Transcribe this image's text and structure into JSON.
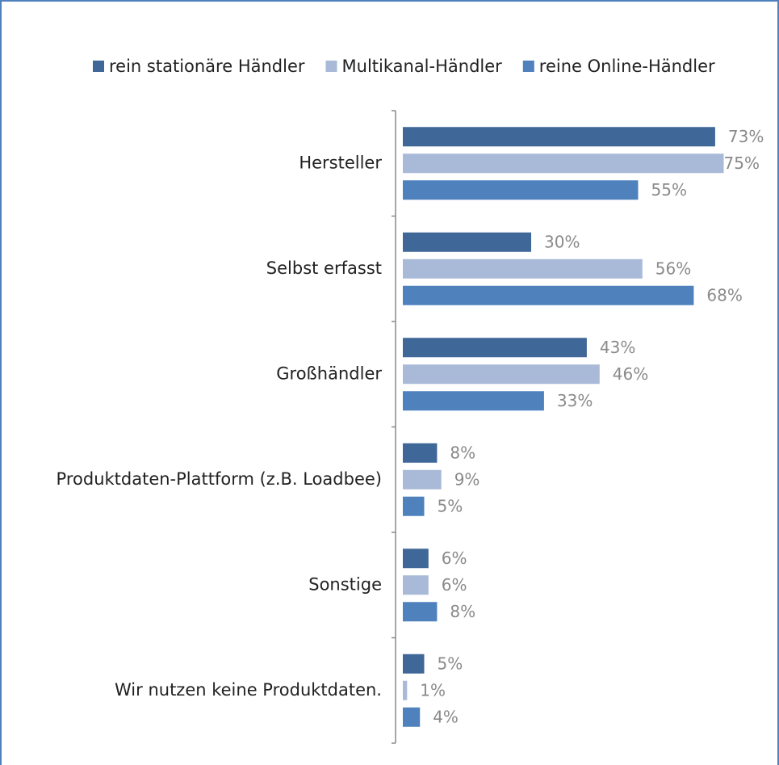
{
  "chart_data": {
    "type": "bar",
    "orientation": "horizontal",
    "categories": [
      "Hersteller",
      "Selbst erfasst",
      "Großhändler",
      "Produktdaten-Plattform (z.B. Loadbee)",
      "Sonstige",
      "Wir nutzen keine Produktdaten."
    ],
    "series": [
      {
        "name": "rein stationäre Händler",
        "color": "#3f6797",
        "values": [
          73,
          30,
          43,
          8,
          6,
          5
        ],
        "value_labels": [
          "73%",
          "30%",
          "43%",
          "8%",
          "6%",
          "5%"
        ]
      },
      {
        "name": "Multikanal-Händler",
        "color": "#a9bad8",
        "values": [
          75,
          56,
          46,
          9,
          6,
          1
        ],
        "value_labels": [
          "75%",
          "56%",
          "46%",
          "9%",
          "6%",
          "1%"
        ]
      },
      {
        "name": "reine Online-Händler",
        "color": "#4f81bd",
        "values": [
          55,
          68,
          33,
          5,
          8,
          4
        ],
        "value_labels": [
          "55%",
          "68%",
          "33%",
          "5%",
          "8%",
          "4%"
        ]
      }
    ],
    "legend": "top"
  }
}
